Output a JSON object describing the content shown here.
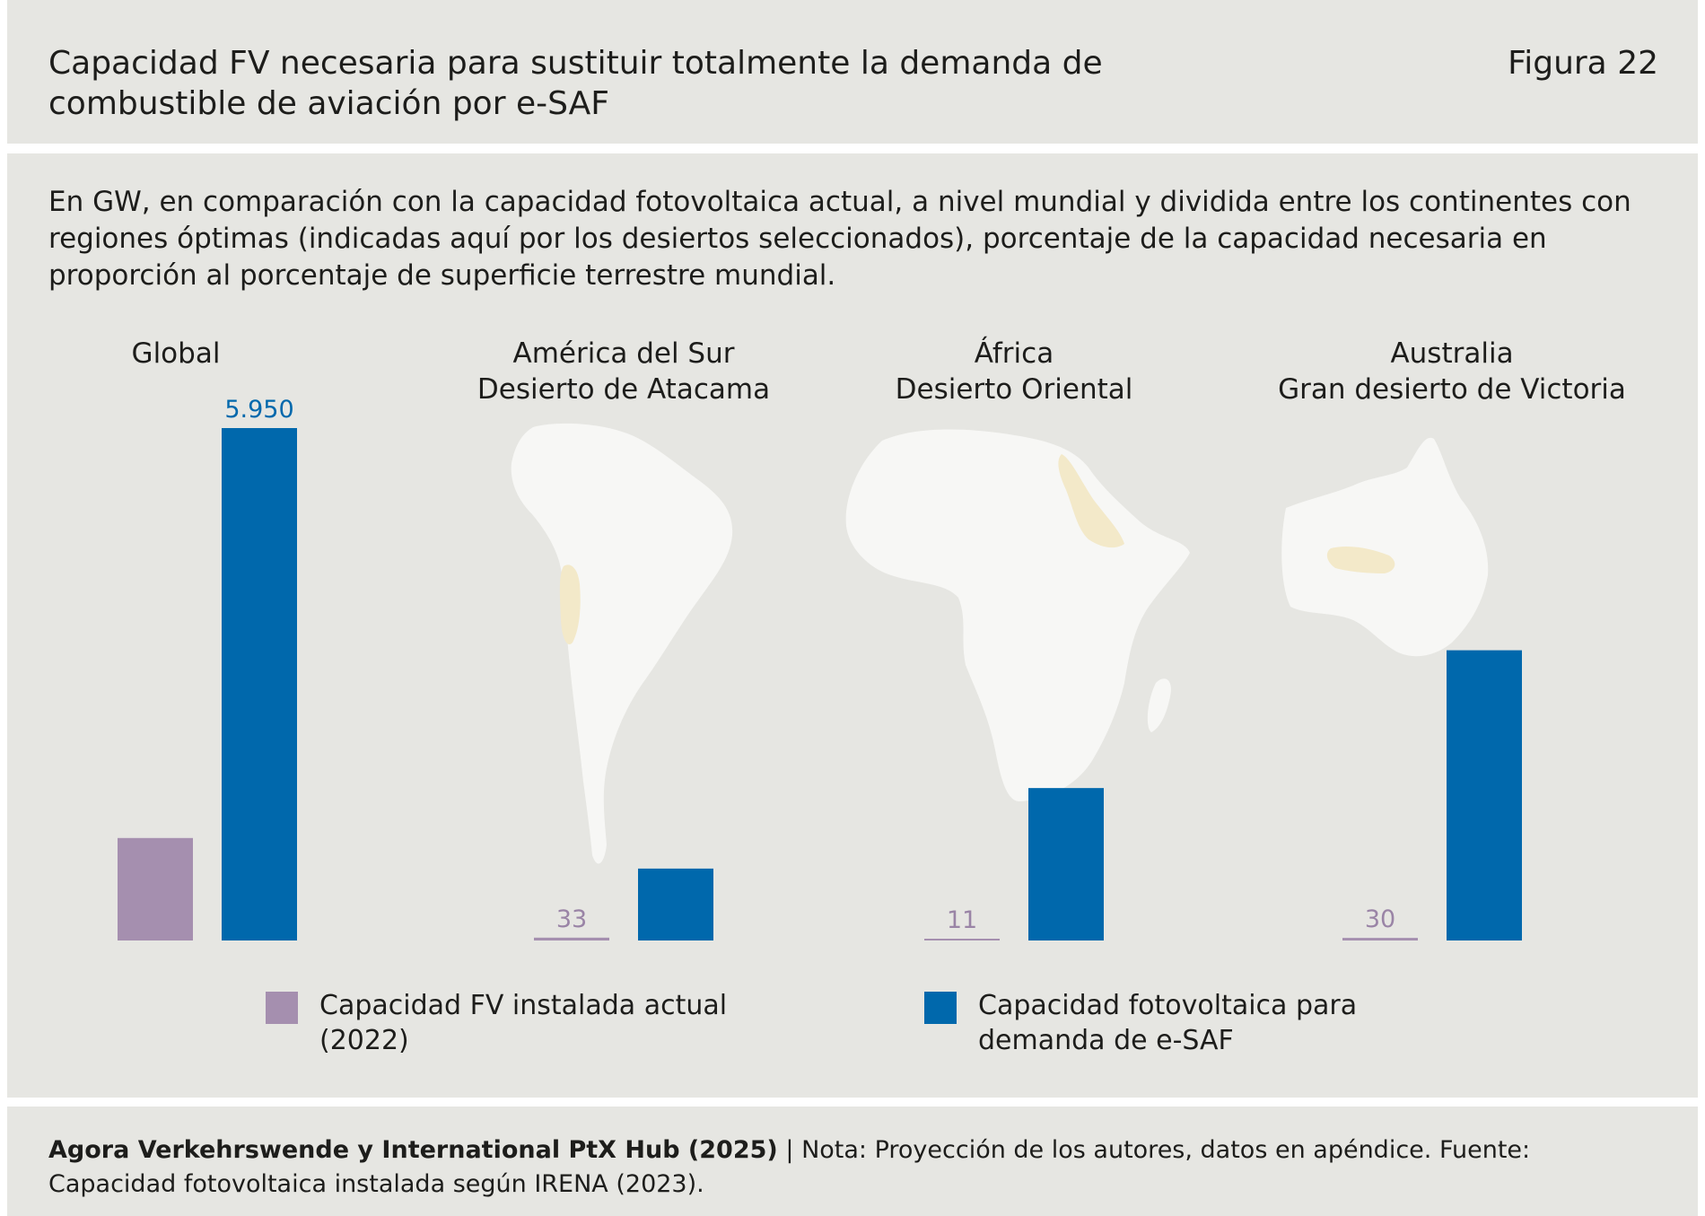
{
  "header": {
    "title": "Capacidad FV necesaria para sustituir totalmente la demanda de combustible de aviación por e-SAF",
    "figure_label": "Figura 22"
  },
  "subtitle": "En GW, en comparación con la capacidad fotovoltaica actual, a nivel mundial y dividida entre los continentes con regiones óptimas (indicadas aquí por los desiertos seleccionados), porcentaje de la capacidad necesaria en proporción al porcentaje de superficie terrestre mundial.",
  "colors": {
    "installed": "#a58faf",
    "esaf": "#0068ac",
    "installed_label": "#9a84a6",
    "esaf_label": "#0068ac",
    "background": "#e6e6e2"
  },
  "chart_data": {
    "type": "bar",
    "categories": [
      {
        "name": "Global",
        "subname": ""
      },
      {
        "name": "América del Sur",
        "subname": "Desierto de Atacama"
      },
      {
        "name": "África",
        "subname": "Desierto Oriental"
      },
      {
        "name": "Australia",
        "subname": "Gran desierto de Victoria"
      }
    ],
    "series": [
      {
        "name": "Capacidad FV instalada actual (2022)",
        "values": [
          1190,
          33,
          11,
          30
        ],
        "labels": [
          "",
          "33",
          "11",
          "30"
        ]
      },
      {
        "name": "Capacidad fotovoltaica para demanda de e-SAF",
        "values": [
          5950,
          835,
          1770,
          3370
        ],
        "labels": [
          "5.950",
          "",
          "",
          ""
        ]
      }
    ],
    "ylim": [
      0,
      5950
    ]
  },
  "legend": [
    {
      "label": "Capacidad FV instalada actual (2022)"
    },
    {
      "label": "Capacidad fotovoltaica para demanda de e-SAF"
    }
  ],
  "footer": {
    "source_bold": "Agora Verkehrswende y International PtX Hub (2025)",
    "separator": "|",
    "note": "Nota: Proyección de los autores, datos en apéndice. Fuente: Capacidad fotovoltaica instalada según IRENA (2023)."
  }
}
